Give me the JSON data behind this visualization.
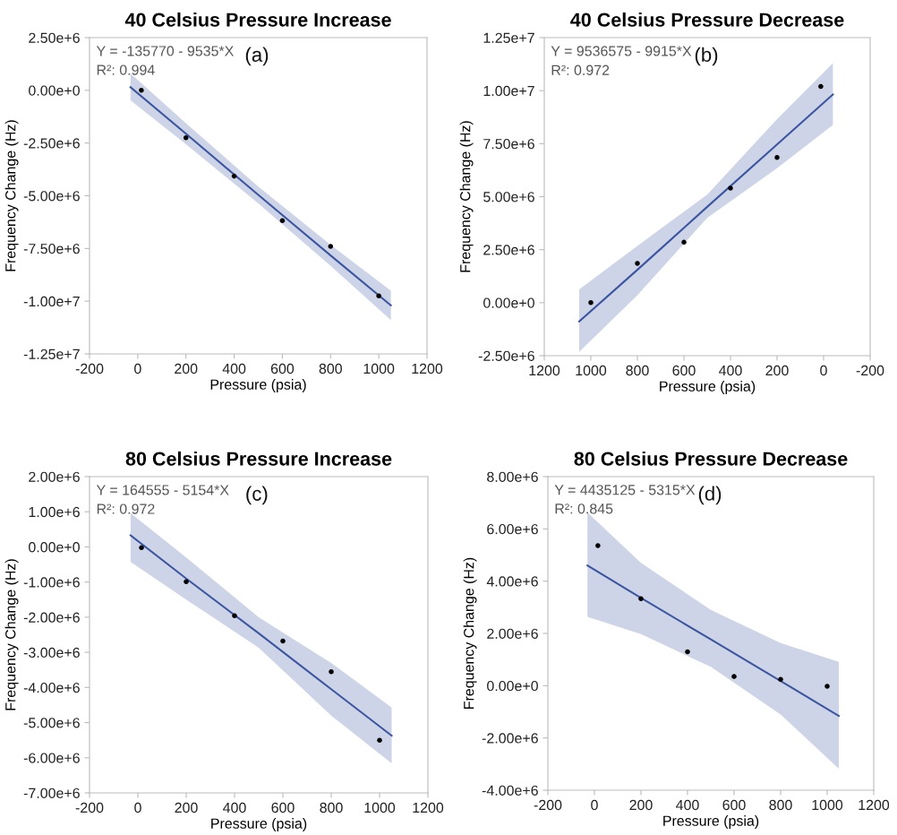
{
  "chart_data": [
    {
      "type": "scatter",
      "title": "40 Celsius Pressure Increase",
      "xlabel": "Pressure (psia)",
      "ylabel": "Frequency Change (Hz)",
      "annotations": [
        "Y = -135770 - 9535*X",
        "R²: 0.994",
        "(a)"
      ],
      "xlim": [
        -200,
        1200
      ],
      "xticks": [
        -200,
        0,
        200,
        400,
        600,
        800,
        1000,
        1200
      ],
      "ylim": [
        -12500000,
        2500000
      ],
      "yticks": [
        {
          "value": 2500000,
          "label": "2.50e+6"
        },
        {
          "value": 0,
          "label": "0.00e+0"
        },
        {
          "value": -2500000,
          "label": "-2.50e+6"
        },
        {
          "value": -5000000,
          "label": "-5.00e+6"
        },
        {
          "value": -7500000,
          "label": "-7.50e+6"
        },
        {
          "value": -10000000,
          "label": "-1.00e+7"
        },
        {
          "value": -12500000,
          "label": "-1.25e+7"
        }
      ],
      "grid": false,
      "legend": false,
      "series": [
        {
          "color": "#000000",
          "marker": "circle",
          "x": [
            15,
            200,
            400,
            600,
            800,
            1000
          ],
          "values": [
            0,
            -2250000,
            -4070000,
            -6180000,
            -7400000,
            -9750000
          ]
        },
        {
          "type": "line",
          "color": "#3b55a0",
          "line_style": "solid",
          "x": [
            -30,
            200,
            500,
            800,
            1050
          ],
          "values": [
            150000,
            -2060000,
            -4960000,
            -7830000,
            -10200000
          ],
          "lower": [
            -470000,
            -2560000,
            -5360000,
            -8330000,
            -10900000
          ],
          "upper": [
            800000,
            -1560000,
            -4560000,
            -7330000,
            -9500000
          ]
        }
      ]
    },
    {
      "type": "scatter",
      "title": "40 Celsius Pressure Decrease",
      "xlabel": "Pressure (psia)",
      "ylabel": "Frequency Change (Hz)",
      "annotations": [
        "Y = 9536575 - 9915*X",
        "R²: 0.972",
        "(b)"
      ],
      "xlim": [
        1200,
        -200
      ],
      "xticks": [
        1200,
        1000,
        800,
        600,
        400,
        200,
        0,
        -200
      ],
      "ylim": [
        -2500000,
        12500000
      ],
      "yticks": [
        {
          "value": -2500000,
          "label": "-2.50e+6"
        },
        {
          "value": 0,
          "label": "0.00e+0"
        },
        {
          "value": 2500000,
          "label": "2.50e+6"
        },
        {
          "value": 5000000,
          "label": "5.00e+6"
        },
        {
          "value": 7500000,
          "label": "7.50e+6"
        },
        {
          "value": 10000000,
          "label": "1.00e+7"
        },
        {
          "value": 12500000,
          "label": "1.25e+7"
        }
      ],
      "grid": false,
      "legend": false,
      "series": [
        {
          "color": "#000000",
          "marker": "circle",
          "x": [
            1000,
            800,
            600,
            400,
            200,
            12
          ],
          "values": [
            0,
            1850000,
            2850000,
            5400000,
            6850000,
            10200000
          ]
        },
        {
          "type": "line",
          "color": "#3b55a0",
          "line_style": "solid",
          "x": [
            1050,
            800,
            500,
            200,
            -40
          ],
          "values": [
            -890000,
            1550000,
            4520000,
            7460000,
            9820000
          ],
          "lower": [
            -2320000,
            350000,
            4000000,
            6340000,
            8380000
          ],
          "upper": [
            630000,
            2680000,
            5100000,
            8660000,
            11300000
          ]
        }
      ]
    },
    {
      "type": "scatter",
      "title": "80 Celsius Pressure Increase",
      "xlabel": "Pressure (psia)",
      "ylabel": "Frequency Change (Hz)",
      "annotations": [
        "Y = 164555 - 5154*X",
        "R²: 0.972",
        "(c)"
      ],
      "xlim": [
        -200,
        1200
      ],
      "xticks": [
        -200,
        0,
        200,
        400,
        600,
        800,
        1000,
        1200
      ],
      "ylim": [
        -7000000,
        2000000
      ],
      "yticks": [
        {
          "value": -7000000,
          "label": "-7.00e+6"
        },
        {
          "value": -6000000,
          "label": "-6.00e+6"
        },
        {
          "value": -5000000,
          "label": "-5.00e+6"
        },
        {
          "value": -4000000,
          "label": "-4.00e+6"
        },
        {
          "value": -3000000,
          "label": "-3.00e+6"
        },
        {
          "value": -2000000,
          "label": "-2.00e+6"
        },
        {
          "value": -1000000,
          "label": "-1.00e+6"
        },
        {
          "value": 0,
          "label": "0.00e+0"
        },
        {
          "value": 1000000,
          "label": "1.00e+6"
        },
        {
          "value": 2000000,
          "label": "2.00e+6"
        }
      ],
      "grid": false,
      "legend": false,
      "series": [
        {
          "color": "#000000",
          "marker": "circle",
          "x": [
            15,
            200,
            400,
            600,
            800,
            1000
          ],
          "values": [
            -20000,
            -990000,
            -1960000,
            -2680000,
            -3550000,
            -5500000
          ]
        },
        {
          "type": "line",
          "color": "#3b55a0",
          "line_style": "solid",
          "x": [
            -30,
            200,
            500,
            800,
            1050
          ],
          "values": [
            330000,
            -900000,
            -2460000,
            -4050000,
            -5370000
          ],
          "lower": [
            -430000,
            -1500000,
            -2870000,
            -4800000,
            -6160000
          ],
          "upper": [
            960000,
            -300000,
            -2000000,
            -3300000,
            -4570000
          ]
        }
      ]
    },
    {
      "type": "scatter",
      "title": "80 Celsius Pressure Decrease",
      "xlabel": "Pressure (psia)",
      "ylabel": "Frequency Change (Hz)",
      "annotations": [
        "Y = 4435125 - 5315*X",
        "R²: 0.845",
        "(d)"
      ],
      "xlim": [
        -200,
        1200
      ],
      "xticks": [
        -200,
        0,
        200,
        400,
        600,
        800,
        1000,
        1200
      ],
      "ylim": [
        -4000000,
        8000000
      ],
      "yticks": [
        {
          "value": -4000000,
          "label": "-4.00e+6"
        },
        {
          "value": -2000000,
          "label": "-2.00e+6"
        },
        {
          "value": 0,
          "label": "0.00e+0"
        },
        {
          "value": 2000000,
          "label": "2.00e+6"
        },
        {
          "value": 4000000,
          "label": "4.00e+6"
        },
        {
          "value": 6000000,
          "label": "6.00e+6"
        },
        {
          "value": 8000000,
          "label": "8.00e+6"
        }
      ],
      "grid": false,
      "legend": false,
      "series": [
        {
          "color": "#000000",
          "marker": "circle",
          "x": [
            15,
            200,
            400,
            600,
            800,
            1000
          ],
          "values": [
            5360000,
            3330000,
            1300000,
            350000,
            240000,
            -20000
          ]
        },
        {
          "type": "line",
          "color": "#3b55a0",
          "line_style": "solid",
          "x": [
            -30,
            200,
            500,
            800,
            1050
          ],
          "values": [
            4600000,
            3360000,
            1770000,
            180000,
            -1160000
          ],
          "lower": [
            2630000,
            1970000,
            720000,
            -1100000,
            -3180000
          ],
          "upper": [
            6630000,
            4700000,
            2900000,
            1630000,
            910000
          ]
        }
      ]
    }
  ]
}
